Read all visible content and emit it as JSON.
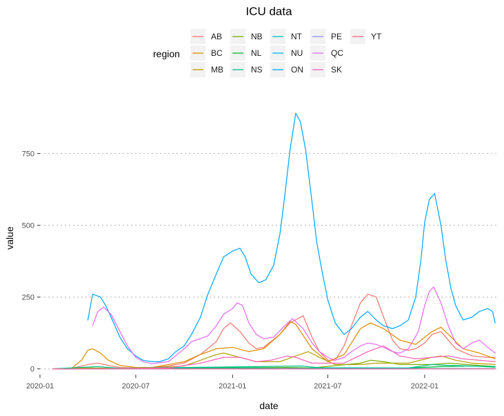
{
  "chart_data": {
    "type": "line",
    "title": "ICU data",
    "xlabel": "date",
    "ylabel": "value",
    "xlim": [
      "2020-01-01",
      "2022-05-20"
    ],
    "ylim": [
      -20,
      960
    ],
    "x_ticks": [
      "2020-01-01",
      "2020-07-01",
      "2021-01-01",
      "2021-07-01",
      "2022-01-01"
    ],
    "x_tick_labels": [
      "2020-01",
      "2020-07",
      "2021-01",
      "2021-07",
      "2022-01"
    ],
    "y_ticks": [
      0,
      250,
      500,
      750
    ],
    "y_tick_labels": [
      "0",
      "250",
      "500",
      "750"
    ],
    "grid": true,
    "legend": {
      "title": "region",
      "placement": "top",
      "columns": 5
    },
    "series": [
      {
        "name": "AB",
        "color": "#F8766D",
        "points": [
          [
            "2020-01-25",
            0
          ],
          [
            "2020-03-01",
            2
          ],
          [
            "2020-04-01",
            15
          ],
          [
            "2020-04-20",
            20
          ],
          [
            "2020-05-15",
            10
          ],
          [
            "2020-06-01",
            5
          ],
          [
            "2020-07-01",
            3
          ],
          [
            "2020-08-01",
            5
          ],
          [
            "2020-09-01",
            10
          ],
          [
            "2020-10-01",
            20
          ],
          [
            "2020-11-01",
            50
          ],
          [
            "2020-12-01",
            95
          ],
          [
            "2020-12-15",
            140
          ],
          [
            "2020-12-28",
            160
          ],
          [
            "2021-01-15",
            130
          ],
          [
            "2021-02-01",
            90
          ],
          [
            "2021-02-15",
            70
          ],
          [
            "2021-03-01",
            75
          ],
          [
            "2021-04-01",
            120
          ],
          [
            "2021-04-20",
            160
          ],
          [
            "2021-05-05",
            175
          ],
          [
            "2021-05-15",
            185
          ],
          [
            "2021-06-01",
            110
          ],
          [
            "2021-06-15",
            60
          ],
          [
            "2021-07-01",
            30
          ],
          [
            "2021-07-15",
            30
          ],
          [
            "2021-08-01",
            80
          ],
          [
            "2021-08-15",
            150
          ],
          [
            "2021-09-01",
            230
          ],
          [
            "2021-09-15",
            260
          ],
          [
            "2021-10-01",
            250
          ],
          [
            "2021-10-15",
            180
          ],
          [
            "2021-11-01",
            100
          ],
          [
            "2021-11-15",
            70
          ],
          [
            "2021-12-01",
            65
          ],
          [
            "2021-12-15",
            70
          ],
          [
            "2022-01-01",
            90
          ],
          [
            "2022-01-15",
            120
          ],
          [
            "2022-02-01",
            130
          ],
          [
            "2022-02-15",
            100
          ],
          [
            "2022-03-01",
            70
          ],
          [
            "2022-04-01",
            45
          ],
          [
            "2022-05-01",
            40
          ],
          [
            "2022-05-15",
            40
          ]
        ]
      },
      {
        "name": "BC",
        "color": "#DE8C00",
        "points": [
          [
            "2020-01-25",
            0
          ],
          [
            "2020-03-01",
            2
          ],
          [
            "2020-03-20",
            30
          ],
          [
            "2020-04-01",
            65
          ],
          [
            "2020-04-10",
            70
          ],
          [
            "2020-04-25",
            55
          ],
          [
            "2020-05-10",
            30
          ],
          [
            "2020-06-01",
            12
          ],
          [
            "2020-07-01",
            5
          ],
          [
            "2020-08-01",
            5
          ],
          [
            "2020-09-01",
            15
          ],
          [
            "2020-10-01",
            25
          ],
          [
            "2020-11-01",
            50
          ],
          [
            "2020-12-01",
            70
          ],
          [
            "2021-01-01",
            75
          ],
          [
            "2021-02-01",
            60
          ],
          [
            "2021-03-01",
            70
          ],
          [
            "2021-04-01",
            120
          ],
          [
            "2021-04-20",
            165
          ],
          [
            "2021-05-01",
            155
          ],
          [
            "2021-06-01",
            70
          ],
          [
            "2021-07-01",
            25
          ],
          [
            "2021-08-01",
            50
          ],
          [
            "2021-09-01",
            140
          ],
          [
            "2021-09-20",
            160
          ],
          [
            "2021-10-15",
            140
          ],
          [
            "2021-11-15",
            100
          ],
          [
            "2021-12-15",
            85
          ],
          [
            "2022-01-15",
            130
          ],
          [
            "2022-02-01",
            145
          ],
          [
            "2022-02-15",
            120
          ],
          [
            "2022-03-15",
            70
          ],
          [
            "2022-04-15",
            55
          ],
          [
            "2022-05-15",
            35
          ]
        ]
      },
      {
        "name": "MB",
        "color": "#B79F00",
        "points": [
          [
            "2020-01-25",
            0
          ],
          [
            "2020-04-01",
            3
          ],
          [
            "2020-06-01",
            2
          ],
          [
            "2020-08-01",
            3
          ],
          [
            "2020-10-01",
            10
          ],
          [
            "2020-11-01",
            30
          ],
          [
            "2020-12-01",
            50
          ],
          [
            "2020-12-15",
            55
          ],
          [
            "2021-01-15",
            40
          ],
          [
            "2021-02-15",
            25
          ],
          [
            "2021-04-01",
            25
          ],
          [
            "2021-05-01",
            45
          ],
          [
            "2021-05-25",
            60
          ],
          [
            "2021-06-15",
            40
          ],
          [
            "2021-07-15",
            15
          ],
          [
            "2021-09-01",
            15
          ],
          [
            "2021-10-01",
            20
          ],
          [
            "2021-12-01",
            20
          ],
          [
            "2022-01-15",
            40
          ],
          [
            "2022-02-01",
            45
          ],
          [
            "2022-03-01",
            30
          ],
          [
            "2022-04-01",
            20
          ],
          [
            "2022-05-15",
            15
          ]
        ]
      },
      {
        "name": "NB",
        "color": "#7CAE00",
        "points": [
          [
            "2020-01-25",
            0
          ],
          [
            "2020-09-01",
            1
          ],
          [
            "2021-04-15",
            5
          ],
          [
            "2021-06-01",
            3
          ],
          [
            "2021-09-01",
            20
          ],
          [
            "2021-09-20",
            30
          ],
          [
            "2021-10-15",
            25
          ],
          [
            "2021-11-15",
            15
          ],
          [
            "2022-01-15",
            15
          ],
          [
            "2022-02-15",
            20
          ],
          [
            "2022-05-15",
            8
          ]
        ]
      },
      {
        "name": "NL",
        "color": "#00BA38",
        "points": [
          [
            "2020-01-25",
            0
          ],
          [
            "2021-02-15",
            4
          ],
          [
            "2021-04-01",
            2
          ],
          [
            "2021-12-01",
            3
          ],
          [
            "2022-02-01",
            8
          ],
          [
            "2022-04-01",
            10
          ],
          [
            "2022-05-15",
            6
          ]
        ]
      },
      {
        "name": "NS",
        "color": "#00C08B",
        "points": [
          [
            "2020-01-25",
            0
          ],
          [
            "2020-04-20",
            8
          ],
          [
            "2020-06-01",
            2
          ],
          [
            "2021-05-10",
            10
          ],
          [
            "2021-06-15",
            4
          ],
          [
            "2021-12-01",
            3
          ],
          [
            "2022-01-15",
            15
          ],
          [
            "2022-02-15",
            12
          ],
          [
            "2022-05-15",
            8
          ]
        ]
      },
      {
        "name": "NT",
        "color": "#00BFC4",
        "points": [
          [
            "2020-01-25",
            0
          ],
          [
            "2021-09-01",
            2
          ],
          [
            "2022-05-15",
            1
          ]
        ]
      },
      {
        "name": "NU",
        "color": "#00B4F0",
        "points": [
          [
            "2020-01-25",
            0
          ],
          [
            "2021-05-01",
            1
          ],
          [
            "2022-05-15",
            0
          ]
        ]
      },
      {
        "name": "ON",
        "color": "#00A9FF",
        "points": [
          [
            "2020-04-01",
            170
          ],
          [
            "2020-04-10",
            260
          ],
          [
            "2020-04-25",
            250
          ],
          [
            "2020-05-05",
            220
          ],
          [
            "2020-05-20",
            160
          ],
          [
            "2020-06-01",
            110
          ],
          [
            "2020-06-15",
            70
          ],
          [
            "2020-07-01",
            45
          ],
          [
            "2020-07-15",
            30
          ],
          [
            "2020-08-01",
            25
          ],
          [
            "2020-08-15",
            25
          ],
          [
            "2020-09-01",
            35
          ],
          [
            "2020-09-15",
            60
          ],
          [
            "2020-10-01",
            80
          ],
          [
            "2020-10-15",
            120
          ],
          [
            "2020-11-01",
            180
          ],
          [
            "2020-11-15",
            260
          ],
          [
            "2020-12-01",
            330
          ],
          [
            "2020-12-15",
            390
          ],
          [
            "2021-01-01",
            410
          ],
          [
            "2021-01-15",
            420
          ],
          [
            "2021-01-25",
            390
          ],
          [
            "2021-02-05",
            330
          ],
          [
            "2021-02-20",
            300
          ],
          [
            "2021-03-05",
            310
          ],
          [
            "2021-03-20",
            360
          ],
          [
            "2021-04-01",
            470
          ],
          [
            "2021-04-10",
            600
          ],
          [
            "2021-04-20",
            760
          ],
          [
            "2021-05-01",
            890
          ],
          [
            "2021-05-10",
            860
          ],
          [
            "2021-05-20",
            760
          ],
          [
            "2021-06-01",
            580
          ],
          [
            "2021-06-10",
            440
          ],
          [
            "2021-06-20",
            340
          ],
          [
            "2021-07-01",
            240
          ],
          [
            "2021-07-15",
            160
          ],
          [
            "2021-08-01",
            120
          ],
          [
            "2021-08-15",
            140
          ],
          [
            "2021-09-01",
            180
          ],
          [
            "2021-09-15",
            200
          ],
          [
            "2021-10-01",
            170
          ],
          [
            "2021-10-15",
            150
          ],
          [
            "2021-11-01",
            140
          ],
          [
            "2021-11-15",
            150
          ],
          [
            "2021-12-01",
            170
          ],
          [
            "2021-12-15",
            250
          ],
          [
            "2021-12-25",
            380
          ],
          [
            "2022-01-01",
            510
          ],
          [
            "2022-01-10",
            590
          ],
          [
            "2022-01-20",
            610
          ],
          [
            "2022-02-01",
            500
          ],
          [
            "2022-02-10",
            380
          ],
          [
            "2022-02-20",
            280
          ],
          [
            "2022-03-01",
            220
          ],
          [
            "2022-03-15",
            170
          ],
          [
            "2022-04-01",
            180
          ],
          [
            "2022-04-15",
            200
          ],
          [
            "2022-05-01",
            210
          ],
          [
            "2022-05-10",
            200
          ],
          [
            "2022-05-15",
            160
          ]
        ]
      },
      {
        "name": "PE",
        "color": "#9590FF",
        "points": [
          [
            "2020-01-25",
            0
          ],
          [
            "2022-05-15",
            0
          ]
        ]
      },
      {
        "name": "QC",
        "color": "#E76BF3",
        "points": [
          [
            "2020-04-10",
            150
          ],
          [
            "2020-04-20",
            200
          ],
          [
            "2020-05-01",
            215
          ],
          [
            "2020-05-15",
            190
          ],
          [
            "2020-06-01",
            130
          ],
          [
            "2020-06-15",
            80
          ],
          [
            "2020-07-01",
            40
          ],
          [
            "2020-07-15",
            25
          ],
          [
            "2020-08-01",
            18
          ],
          [
            "2020-09-01",
            25
          ],
          [
            "2020-10-01",
            70
          ],
          [
            "2020-10-15",
            95
          ],
          [
            "2020-11-01",
            105
          ],
          [
            "2020-11-15",
            115
          ],
          [
            "2020-12-01",
            150
          ],
          [
            "2020-12-15",
            190
          ],
          [
            "2021-01-01",
            210
          ],
          [
            "2021-01-10",
            230
          ],
          [
            "2021-01-20",
            220
          ],
          [
            "2021-02-01",
            160
          ],
          [
            "2021-02-15",
            120
          ],
          [
            "2021-03-01",
            105
          ],
          [
            "2021-03-20",
            110
          ],
          [
            "2021-04-10",
            150
          ],
          [
            "2021-04-25",
            175
          ],
          [
            "2021-05-15",
            140
          ],
          [
            "2021-06-01",
            90
          ],
          [
            "2021-06-15",
            60
          ],
          [
            "2021-07-01",
            40
          ],
          [
            "2021-07-15",
            30
          ],
          [
            "2021-08-01",
            40
          ],
          [
            "2021-08-15",
            60
          ],
          [
            "2021-09-01",
            80
          ],
          [
            "2021-09-15",
            90
          ],
          [
            "2021-10-01",
            85
          ],
          [
            "2021-10-15",
            75
          ],
          [
            "2021-11-01",
            60
          ],
          [
            "2021-11-15",
            55
          ],
          [
            "2021-12-01",
            70
          ],
          [
            "2021-12-20",
            130
          ],
          [
            "2022-01-01",
            220
          ],
          [
            "2022-01-10",
            270
          ],
          [
            "2022-01-18",
            285
          ],
          [
            "2022-02-01",
            230
          ],
          [
            "2022-02-15",
            150
          ],
          [
            "2022-03-01",
            90
          ],
          [
            "2022-03-15",
            70
          ],
          [
            "2022-04-01",
            90
          ],
          [
            "2022-04-15",
            100
          ],
          [
            "2022-05-01",
            75
          ],
          [
            "2022-05-15",
            55
          ]
        ]
      },
      {
        "name": "SK",
        "color": "#FF62BC",
        "points": [
          [
            "2020-01-25",
            0
          ],
          [
            "2020-06-01",
            1
          ],
          [
            "2020-09-01",
            3
          ],
          [
            "2020-11-01",
            20
          ],
          [
            "2020-12-15",
            40
          ],
          [
            "2021-01-15",
            40
          ],
          [
            "2021-02-15",
            25
          ],
          [
            "2021-03-15",
            30
          ],
          [
            "2021-04-15",
            45
          ],
          [
            "2021-05-01",
            40
          ],
          [
            "2021-06-01",
            20
          ],
          [
            "2021-08-01",
            20
          ],
          [
            "2021-09-15",
            60
          ],
          [
            "2021-10-15",
            80
          ],
          [
            "2021-11-15",
            45
          ],
          [
            "2021-12-15",
            35
          ],
          [
            "2022-01-15",
            40
          ],
          [
            "2022-02-15",
            45
          ],
          [
            "2022-03-15",
            35
          ],
          [
            "2022-05-15",
            25
          ]
        ]
      },
      {
        "name": "YT",
        "color": "#FF6C91",
        "points": [
          [
            "2020-01-25",
            0
          ],
          [
            "2022-05-15",
            0
          ]
        ]
      }
    ]
  }
}
